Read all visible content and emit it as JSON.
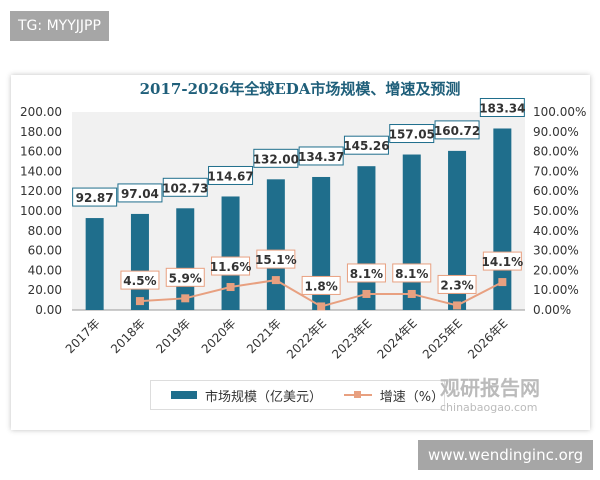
{
  "watermarks": {
    "top_left": "TG: MYYJJPP",
    "bottom_right": "www.wendinginc.org",
    "chart_logo_cn": "观研报告网",
    "chart_logo_en": "chinabaogao.com"
  },
  "chart_data": {
    "type": "bar+line",
    "title": "2017-2026年全球EDA市场规模、增速及预测",
    "categories": [
      "2017年",
      "2018年",
      "2019年",
      "2020年",
      "2021年",
      "2022年E",
      "2023年E",
      "2024年E",
      "2025年E",
      "2026年E"
    ],
    "series": [
      {
        "name": "市场规模（亿美元）",
        "type": "bar",
        "axis": "left",
        "color": "#1f6e8c",
        "values": [
          92.87,
          97.04,
          102.73,
          114.67,
          132.0,
          134.37,
          145.26,
          157.05,
          160.72,
          183.34
        ]
      },
      {
        "name": "增速（%）",
        "type": "line",
        "axis": "right",
        "color": "#e8a080",
        "values": [
          null,
          4.5,
          5.9,
          11.6,
          15.1,
          1.8,
          8.1,
          8.1,
          2.3,
          14.1
        ]
      }
    ],
    "left_axis": {
      "ylim": [
        0,
        200
      ],
      "ticks": [
        "0.00",
        "20.00",
        "40.00",
        "60.00",
        "80.00",
        "100.00",
        "120.00",
        "140.00",
        "160.00",
        "180.00",
        "200.00"
      ]
    },
    "right_axis": {
      "ylim": [
        0,
        100
      ],
      "ticks": [
        "0.00%",
        "10.00%",
        "20.00%",
        "30.00%",
        "40.00%",
        "50.00%",
        "60.00%",
        "70.00%",
        "80.00%",
        "90.00%",
        "100.00%"
      ]
    },
    "legend": "bottom"
  }
}
